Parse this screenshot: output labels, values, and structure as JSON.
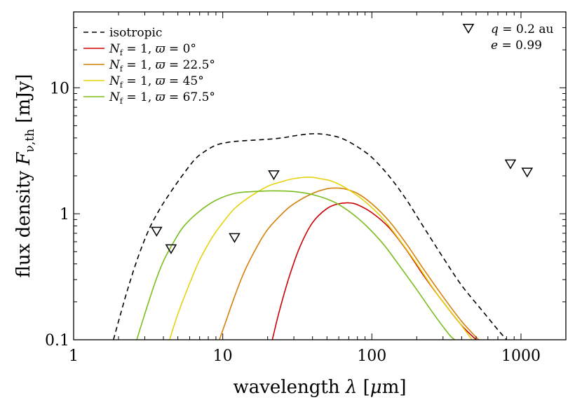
{
  "chart_data": {
    "type": "line",
    "title": "",
    "xlabel": "wavelength λ [μm]",
    "ylabel": "flux density F_ν,th [mJy]",
    "ylabel_parts": {
      "prefix": "flux density ",
      "symbol": "F",
      "subscript": "ν,th",
      "unit": " [mJy]"
    },
    "xlabel_parts": {
      "prefix": "wavelength ",
      "symbol": "λ",
      "unit_open": " [",
      "unit_mu": "μ",
      "unit_rest": "m]"
    },
    "xscale": "log",
    "yscale": "log",
    "xlim": [
      1,
      2000
    ],
    "ylim": [
      0.1,
      40
    ],
    "x_ticks": [
      {
        "value": 1,
        "label": "1"
      },
      {
        "value": 10,
        "label": "10"
      },
      {
        "value": 100,
        "label": "100"
      },
      {
        "value": 1000,
        "label": "1000"
      }
    ],
    "y_ticks": [
      {
        "value": 0.1,
        "label": "0.1"
      },
      {
        "value": 1,
        "label": "1"
      },
      {
        "value": 10,
        "label": "10"
      }
    ],
    "grid": false,
    "legend_position": "top-left",
    "annotation": {
      "position": "top-right",
      "marker": "triangle-down",
      "lines": [
        "q = 0.2 au",
        "e = 0.99"
      ]
    },
    "series": [
      {
        "name": "isotropic",
        "legend_html": "isotropic",
        "color": "#000000",
        "dash": "dashed",
        "points": [
          [
            1.85,
            0.1
          ],
          [
            2.0,
            0.14
          ],
          [
            2.3,
            0.25
          ],
          [
            2.7,
            0.45
          ],
          [
            3.2,
            0.75
          ],
          [
            3.8,
            1.1
          ],
          [
            4.5,
            1.5
          ],
          [
            5.5,
            2.1
          ],
          [
            6.5,
            2.7
          ],
          [
            7.5,
            3.1
          ],
          [
            9,
            3.5
          ],
          [
            11,
            3.7
          ],
          [
            14,
            3.8
          ],
          [
            20,
            3.9
          ],
          [
            25,
            4.0
          ],
          [
            30,
            4.15
          ],
          [
            38,
            4.3
          ],
          [
            45,
            4.3
          ],
          [
            55,
            4.15
          ],
          [
            65,
            3.9
          ],
          [
            80,
            3.4
          ],
          [
            100,
            2.8
          ],
          [
            130,
            2.0
          ],
          [
            170,
            1.3
          ],
          [
            220,
            0.8
          ],
          [
            300,
            0.45
          ],
          [
            400,
            0.27
          ],
          [
            550,
            0.17
          ],
          [
            700,
            0.12
          ],
          [
            800,
            0.1
          ]
        ]
      },
      {
        "name": "N_f = 1, ϖ = 0°",
        "legend_html": "<tspan font-style=\"italic\">N</tspan><tspan font-size=\"11\" dy=\"4\">f</tspan><tspan dy=\"-4\"> = 1, </tspan><tspan font-style=\"italic\">ϖ</tspan> = 0°",
        "color": "#cc0000",
        "dash": "solid",
        "points": [
          [
            21.5,
            0.1
          ],
          [
            24,
            0.17
          ],
          [
            28,
            0.32
          ],
          [
            33,
            0.55
          ],
          [
            40,
            0.85
          ],
          [
            50,
            1.1
          ],
          [
            60,
            1.2
          ],
          [
            70,
            1.22
          ],
          [
            80,
            1.18
          ],
          [
            100,
            1.02
          ],
          [
            130,
            0.78
          ],
          [
            170,
            0.52
          ],
          [
            220,
            0.33
          ],
          [
            300,
            0.2
          ],
          [
            400,
            0.13
          ],
          [
            500,
            0.1
          ]
        ]
      },
      {
        "name": "N_f = 1, ϖ = 22.5°",
        "legend_html": "<tspan font-style=\"italic\">N</tspan><tspan font-size=\"11\" dy=\"4\">f</tspan><tspan dy=\"-4\"> = 1, </tspan><tspan font-style=\"italic\">ϖ</tspan> = 22.5°",
        "color": "#d4800a",
        "dash": "solid",
        "points": [
          [
            9.5,
            0.1
          ],
          [
            10.5,
            0.14
          ],
          [
            12,
            0.22
          ],
          [
            14,
            0.35
          ],
          [
            17,
            0.55
          ],
          [
            20,
            0.75
          ],
          [
            25,
            1.0
          ],
          [
            30,
            1.2
          ],
          [
            40,
            1.45
          ],
          [
            50,
            1.58
          ],
          [
            57,
            1.6
          ],
          [
            65,
            1.58
          ],
          [
            80,
            1.45
          ],
          [
            100,
            1.2
          ],
          [
            130,
            0.88
          ],
          [
            170,
            0.58
          ],
          [
            220,
            0.37
          ],
          [
            300,
            0.22
          ],
          [
            400,
            0.14
          ],
          [
            520,
            0.1
          ]
        ]
      },
      {
        "name": "N_f = 1, ϖ = 45°",
        "legend_html": "<tspan font-style=\"italic\">N</tspan><tspan font-size=\"11\" dy=\"4\">f</tspan><tspan dy=\"-4\"> = 1, </tspan><tspan font-style=\"italic\">ϖ</tspan> = 45°",
        "color": "#e6d30e",
        "dash": "solid",
        "points": [
          [
            4.4,
            0.1
          ],
          [
            5,
            0.16
          ],
          [
            6,
            0.28
          ],
          [
            7,
            0.43
          ],
          [
            8.5,
            0.65
          ],
          [
            10,
            0.85
          ],
          [
            12,
            1.1
          ],
          [
            15,
            1.35
          ],
          [
            20,
            1.65
          ],
          [
            25,
            1.8
          ],
          [
            30,
            1.9
          ],
          [
            38,
            1.95
          ],
          [
            45,
            1.9
          ],
          [
            55,
            1.8
          ],
          [
            70,
            1.55
          ],
          [
            90,
            1.25
          ],
          [
            120,
            0.9
          ],
          [
            160,
            0.58
          ],
          [
            200,
            0.4
          ],
          [
            250,
            0.27
          ],
          [
            300,
            0.2
          ],
          [
            380,
            0.14
          ],
          [
            470,
            0.1
          ]
        ]
      },
      {
        "name": "N_f = 1, ϖ = 67.5°",
        "legend_html": "<tspan font-style=\"italic\">N</tspan><tspan font-size=\"11\" dy=\"4\">f</tspan><tspan dy=\"-4\"> = 1, </tspan><tspan font-style=\"italic\">ϖ</tspan> = 67.5°",
        "color": "#7cbd1e",
        "dash": "solid",
        "points": [
          [
            2.65,
            0.1
          ],
          [
            3.0,
            0.16
          ],
          [
            3.5,
            0.28
          ],
          [
            4.0,
            0.42
          ],
          [
            4.7,
            0.6
          ],
          [
            5.5,
            0.8
          ],
          [
            7,
            1.05
          ],
          [
            9,
            1.28
          ],
          [
            12,
            1.45
          ],
          [
            16,
            1.5
          ],
          [
            22,
            1.52
          ],
          [
            30,
            1.5
          ],
          [
            40,
            1.42
          ],
          [
            55,
            1.25
          ],
          [
            70,
            1.05
          ],
          [
            90,
            0.82
          ],
          [
            120,
            0.57
          ],
          [
            150,
            0.4
          ],
          [
            200,
            0.25
          ],
          [
            260,
            0.16
          ],
          [
            330,
            0.11
          ],
          [
            360,
            0.1
          ]
        ]
      }
    ],
    "upper_limits": {
      "marker": "triangle-down",
      "points": [
        [
          3.6,
          0.73
        ],
        [
          4.5,
          0.53
        ],
        [
          12,
          0.65
        ],
        [
          22,
          2.05
        ],
        [
          850,
          2.5
        ],
        [
          1100,
          2.15
        ]
      ]
    }
  }
}
